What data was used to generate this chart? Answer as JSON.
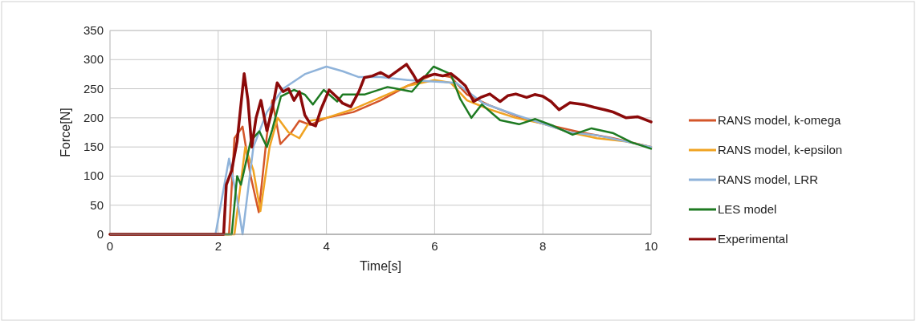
{
  "chart_data": {
    "type": "line",
    "xlabel": "Time[s]",
    "ylabel": "Force[N]",
    "xlim": [
      0,
      10
    ],
    "xticks": [
      0,
      2,
      4,
      6,
      8,
      10
    ],
    "ylim": [
      0,
      350
    ],
    "yticks": [
      0,
      50,
      100,
      150,
      200,
      250,
      300,
      350
    ],
    "grid": true,
    "legend": "right",
    "marker": "none",
    "line_style": "solid",
    "series": [
      {
        "name": "RANS model, k-omega",
        "color": "#d4562a",
        "x": [
          0,
          2.2,
          2.3,
          2.45,
          2.6,
          2.75,
          2.9,
          3.0,
          3.15,
          3.35,
          3.5,
          3.7,
          4.0,
          4.5,
          5.0,
          5.5,
          6.0,
          6.3,
          6.6,
          7.0,
          7.6,
          8.0,
          8.7,
          9.3,
          10
        ],
        "values": [
          0,
          0,
          165,
          185,
          100,
          38,
          170,
          230,
          155,
          175,
          195,
          188,
          200,
          210,
          230,
          255,
          275,
          270,
          240,
          222,
          200,
          190,
          175,
          165,
          150
        ]
      },
      {
        "name": "RANS model, k-epsilon",
        "color": "#f0a322",
        "x": [
          0,
          2.3,
          2.5,
          2.65,
          2.78,
          2.95,
          3.1,
          3.3,
          3.5,
          3.7,
          4.0,
          4.5,
          5.0,
          5.5,
          6.0,
          6.3,
          6.6,
          7.0,
          7.5,
          8.0,
          8.5,
          9.0,
          9.5,
          10
        ],
        "values": [
          0,
          0,
          150,
          110,
          40,
          150,
          200,
          175,
          165,
          195,
          200,
          215,
          235,
          255,
          265,
          260,
          230,
          215,
          200,
          190,
          175,
          165,
          160,
          150
        ]
      },
      {
        "name": "RANS model, LRR",
        "color": "#8fb3da",
        "x": [
          0,
          1.95,
          2.2,
          2.35,
          2.45,
          2.65,
          2.9,
          3.2,
          3.6,
          4.0,
          4.3,
          4.6,
          5.0,
          5.5,
          6.4,
          6.9,
          7.5,
          8.0,
          8.5,
          9.0,
          9.5,
          10
        ],
        "values": [
          0,
          0,
          130,
          60,
          0,
          150,
          210,
          250,
          275,
          288,
          280,
          270,
          270,
          265,
          260,
          225,
          205,
          190,
          175,
          170,
          160,
          150
        ]
      },
      {
        "name": "LES model",
        "color": "#1e7a22",
        "x": [
          0,
          2.25,
          2.35,
          2.42,
          2.6,
          2.76,
          2.9,
          3.0,
          3.16,
          3.4,
          3.6,
          3.75,
          3.95,
          4.2,
          4.3,
          4.7,
          5.13,
          5.58,
          5.98,
          6.3,
          6.47,
          6.68,
          6.87,
          7.21,
          7.56,
          7.86,
          8.2,
          8.55,
          8.9,
          9.29,
          9.64,
          10
        ],
        "values": [
          0,
          0,
          100,
          85,
          160,
          177,
          150,
          180,
          237,
          248,
          240,
          223,
          248,
          228,
          240,
          240,
          253,
          245,
          288,
          275,
          233,
          200,
          223,
          196,
          189,
          198,
          186,
          171,
          182,
          174,
          158,
          147
        ]
      },
      {
        "name": "Experimental",
        "color": "#8b0a0a",
        "x": [
          0,
          2.1,
          2.15,
          2.25,
          2.35,
          2.48,
          2.55,
          2.62,
          2.7,
          2.79,
          2.9,
          3.0,
          3.09,
          3.2,
          3.3,
          3.4,
          3.5,
          3.6,
          3.7,
          3.8,
          3.9,
          4.05,
          4.2,
          4.3,
          4.45,
          4.6,
          4.7,
          4.85,
          5.0,
          5.15,
          5.3,
          5.48,
          5.6,
          5.68,
          5.8,
          6.0,
          6.15,
          6.3,
          6.45,
          6.57,
          6.72,
          6.85,
          7.02,
          7.21,
          7.35,
          7.5,
          7.7,
          7.85,
          8.0,
          8.15,
          8.3,
          8.5,
          8.75,
          8.95,
          9.14,
          9.3,
          9.54,
          9.75,
          10
        ],
        "values": [
          0,
          0,
          85,
          110,
          160,
          276,
          230,
          150,
          200,
          230,
          178,
          215,
          260,
          245,
          250,
          230,
          245,
          205,
          190,
          186,
          215,
          248,
          235,
          225,
          219,
          245,
          269,
          272,
          278,
          270,
          280,
          292,
          275,
          262,
          270,
          275,
          272,
          276,
          265,
          255,
          228,
          235,
          241,
          228,
          238,
          241,
          235,
          240,
          237,
          228,
          214,
          226,
          223,
          218,
          214,
          210,
          200,
          202,
          193
        ]
      }
    ]
  }
}
